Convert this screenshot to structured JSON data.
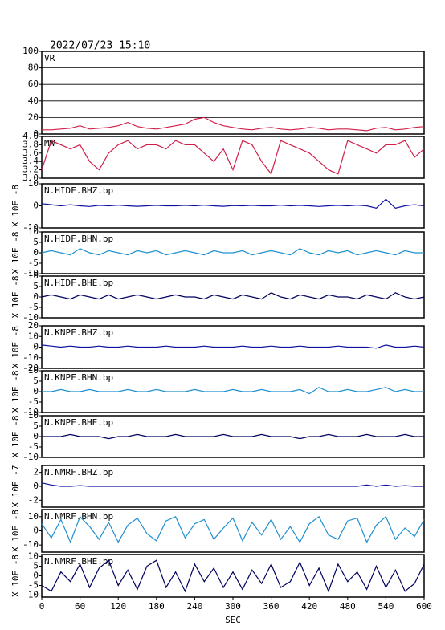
{
  "chart_data": {
    "type": "line",
    "title": "2022/07/23 15:10",
    "xlabel": "SEC",
    "xlim": [
      0,
      600
    ],
    "xticks": [
      0,
      60,
      120,
      180,
      240,
      300,
      360,
      420,
      480,
      540,
      600
    ],
    "x": [
      0,
      15,
      30,
      45,
      60,
      75,
      90,
      105,
      120,
      135,
      150,
      165,
      180,
      195,
      210,
      225,
      240,
      255,
      270,
      285,
      300,
      315,
      330,
      345,
      360,
      375,
      390,
      405,
      420,
      435,
      450,
      465,
      480,
      495,
      510,
      525,
      540,
      555,
      570,
      585,
      600
    ],
    "panels": [
      {
        "label": "VR",
        "color": "#d0204a",
        "ylim": [
          0,
          100
        ],
        "yticks": [
          0,
          20,
          40,
          60,
          80,
          100
        ],
        "grid": true,
        "values": [
          5,
          5,
          6,
          7,
          10,
          6,
          7,
          8,
          10,
          14,
          9,
          7,
          6,
          8,
          10,
          12,
          18,
          20,
          14,
          10,
          8,
          6,
          5,
          7,
          8,
          6,
          5,
          6,
          8,
          7,
          5,
          6,
          6,
          5,
          4,
          7,
          8,
          5,
          6,
          8,
          9
        ]
      },
      {
        "label": "MW",
        "color": "#d0204a",
        "ylim": [
          3,
          4
        ],
        "yticks": [
          {
            "value": 3,
            "label": "3.0"
          },
          3.2,
          3.4,
          3.6,
          3.8,
          {
            "value": 4,
            "label": "4.0"
          }
        ],
        "values": [
          3.2,
          3.9,
          3.8,
          3.7,
          3.8,
          3.4,
          3.2,
          3.6,
          3.8,
          3.9,
          3.7,
          3.8,
          3.8,
          3.7,
          3.9,
          3.8,
          3.8,
          3.6,
          3.4,
          3.7,
          3.2,
          3.9,
          3.8,
          3.4,
          3.1,
          3.9,
          3.8,
          3.7,
          3.6,
          3.4,
          3.2,
          3.1,
          3.9,
          3.8,
          3.7,
          3.6,
          3.8,
          3.8,
          3.9,
          3.5,
          3.7
        ]
      },
      {
        "label": "N.HIDF.BHZ.bp",
        "ylabel": "X 10E -8",
        "color": "#1010a0",
        "ylim": [
          -10,
          10
        ],
        "yticks": [
          -10,
          0,
          10
        ],
        "values": [
          1,
          0.5,
          0,
          0.5,
          0,
          -0.3,
          0.2,
          0,
          0.3,
          0,
          -0.2,
          0,
          0.2,
          0,
          0,
          0.2,
          0,
          0.3,
          0,
          -0.2,
          0.1,
          0,
          0.2,
          0,
          0,
          0.3,
          0,
          0.2,
          0,
          -0.3,
          0,
          0.2,
          0,
          0.3,
          0,
          -1,
          3,
          -1,
          0,
          0.5,
          0
        ]
      },
      {
        "label": "N.HIDF.BHN.bp",
        "ylabel": "X 10E -8",
        "color": "#2090d0",
        "ylim": [
          -10,
          10
        ],
        "yticks": [
          -10,
          -5,
          0,
          5,
          10
        ],
        "values": [
          0,
          1,
          0,
          -1,
          2,
          0,
          -1,
          1,
          0,
          -1,
          1,
          0,
          1,
          -1,
          0,
          1,
          0,
          -1,
          1,
          0,
          0,
          1,
          -1,
          0,
          1,
          0,
          -1,
          2,
          0,
          -1,
          1,
          0,
          1,
          -1,
          0,
          1,
          0,
          -1,
          1,
          0,
          0
        ]
      },
      {
        "label": "N.HIDF.BHE.bp",
        "ylabel": "X 10E -8",
        "color": "#000060",
        "ylim": [
          -10,
          10
        ],
        "yticks": [
          -10,
          -5,
          0,
          5,
          10
        ],
        "values": [
          0,
          1,
          0,
          -1,
          1,
          0,
          -1,
          1,
          -1,
          0,
          1,
          0,
          -1,
          0,
          1,
          0,
          0,
          -1,
          1,
          0,
          -1,
          1,
          0,
          -1,
          2,
          0,
          -1,
          1,
          0,
          -1,
          1,
          0,
          0,
          -1,
          1,
          0,
          -1,
          2,
          0,
          -1,
          0
        ]
      },
      {
        "label": "N.KNPF.BHZ.bp",
        "ylabel": "X 10E -8",
        "color": "#1010a0",
        "ylim": [
          -20,
          20
        ],
        "yticks": [
          -20,
          -10,
          0,
          10,
          20
        ],
        "values": [
          2,
          1,
          0,
          1,
          0,
          0,
          1,
          0,
          0,
          1,
          0,
          0,
          0,
          1,
          0,
          0,
          0,
          1,
          0,
          0,
          0,
          1,
          0,
          0,
          1,
          0,
          0,
          1,
          0,
          0,
          0,
          1,
          0,
          0,
          0,
          -1,
          2,
          0,
          0,
          1,
          0
        ]
      },
      {
        "label": "N.KNPF.BHN.bp",
        "ylabel": "X 10E -8",
        "color": "#2090d0",
        "ylim": [
          -10,
          10
        ],
        "yticks": [
          -10,
          -5,
          0,
          5,
          10
        ],
        "values": [
          0,
          0,
          1,
          0,
          0,
          1,
          0,
          0,
          0,
          1,
          0,
          0,
          1,
          0,
          0,
          0,
          1,
          0,
          0,
          0,
          1,
          0,
          0,
          1,
          0,
          0,
          0,
          1,
          -1,
          2,
          0,
          0,
          1,
          0,
          0,
          1,
          2,
          0,
          1,
          0,
          0
        ]
      },
      {
        "label": "N.KNPF.BHE.bp",
        "ylabel": "X 10E -8",
        "color": "#000060",
        "ylim": [
          -10,
          10
        ],
        "yticks": [
          -10,
          -5,
          0,
          5,
          10
        ],
        "values": [
          0,
          0,
          0,
          1,
          0,
          0,
          0,
          -1,
          0,
          0,
          1,
          0,
          0,
          0,
          1,
          0,
          0,
          0,
          0,
          1,
          0,
          0,
          0,
          1,
          0,
          0,
          0,
          -1,
          0,
          0,
          1,
          0,
          0,
          0,
          1,
          0,
          0,
          0,
          1,
          0,
          0
        ]
      },
      {
        "label": "N.NMRF.BHZ.bp",
        "ylabel": "X 10E -7",
        "color": "#1010a0",
        "ylim": [
          -3,
          3
        ],
        "yticks": [
          -2,
          0,
          2
        ],
        "values": [
          0.5,
          0.2,
          0,
          0,
          0.1,
          0,
          0,
          0,
          0,
          0,
          0,
          0,
          0,
          0,
          0,
          0,
          0,
          0,
          0,
          0,
          0,
          0,
          0,
          0,
          0,
          0,
          0,
          0,
          0,
          0,
          0,
          0,
          0,
          0,
          0.2,
          0,
          0.2,
          0,
          0.1,
          0,
          0
        ]
      },
      {
        "label": "N.NMRF.BHN.bp",
        "ylabel": "X 10E -8",
        "color": "#2090d0",
        "ylim": [
          -15,
          15
        ],
        "yticks": [
          -10,
          0,
          10
        ],
        "values": [
          5,
          -5,
          8,
          -8,
          10,
          3,
          -6,
          6,
          -8,
          4,
          9,
          -2,
          -7,
          7,
          10,
          -5,
          5,
          8,
          -6,
          2,
          9,
          -7,
          6,
          -3,
          8,
          -6,
          3,
          -8,
          5,
          10,
          -3,
          -6,
          7,
          9,
          -8,
          4,
          10,
          -6,
          2,
          -4,
          8
        ]
      },
      {
        "label": "N.NMRF.BHE.bp",
        "ylabel": "X 10E -8",
        "color": "#000060",
        "ylim": [
          -11,
          11
        ],
        "yticks": [
          -10,
          -5,
          0,
          5,
          10
        ],
        "values": [
          -5,
          -8,
          2,
          -3,
          6,
          -6,
          4,
          8,
          -5,
          3,
          -7,
          5,
          8,
          -6,
          2,
          -8,
          6,
          -3,
          4,
          -6,
          2,
          -7,
          3,
          -4,
          6,
          -6,
          -3,
          7,
          -5,
          4,
          -8,
          6,
          -3,
          2,
          -7,
          5,
          -6,
          3,
          -8,
          -4,
          6
        ]
      }
    ]
  }
}
